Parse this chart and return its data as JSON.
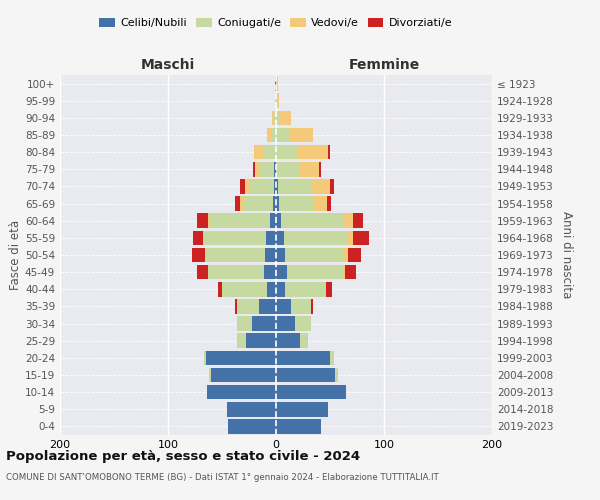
{
  "age_groups": [
    "0-4",
    "5-9",
    "10-14",
    "15-19",
    "20-24",
    "25-29",
    "30-34",
    "35-39",
    "40-44",
    "45-49",
    "50-54",
    "55-59",
    "60-64",
    "65-69",
    "70-74",
    "75-79",
    "80-84",
    "85-89",
    "90-94",
    "95-99",
    "100+"
  ],
  "birth_years": [
    "2019-2023",
    "2014-2018",
    "2009-2013",
    "2004-2008",
    "1999-2003",
    "1994-1998",
    "1989-1993",
    "1984-1988",
    "1979-1983",
    "1974-1978",
    "1969-1973",
    "1964-1968",
    "1959-1963",
    "1954-1958",
    "1949-1953",
    "1944-1948",
    "1939-1943",
    "1934-1938",
    "1929-1933",
    "1924-1928",
    "≤ 1923"
  ],
  "colors": {
    "celibi": "#4472a8",
    "coniugati": "#c5d9a0",
    "vedovi": "#f5c97a",
    "divorziati": "#cc2222"
  },
  "legend_colors": {
    "Celibi/Nubili": "#4472a8",
    "Coniugati/e": "#c5d9a0",
    "Vedovi/e": "#f5c97a",
    "Divorziati/e": "#cc2222"
  },
  "males": {
    "celibi": [
      44,
      45,
      64,
      60,
      65,
      28,
      22,
      16,
      8,
      11,
      10,
      9,
      6,
      3,
      2,
      2,
      0,
      0,
      0,
      0,
      1
    ],
    "coniugati": [
      0,
      0,
      0,
      2,
      2,
      8,
      14,
      20,
      42,
      52,
      55,
      58,
      55,
      28,
      22,
      14,
      12,
      4,
      2,
      0,
      0
    ],
    "vedovi": [
      0,
      0,
      0,
      0,
      0,
      0,
      0,
      0,
      0,
      0,
      1,
      1,
      2,
      2,
      5,
      3,
      8,
      4,
      2,
      1,
      0
    ],
    "divorziati": [
      0,
      0,
      0,
      0,
      0,
      0,
      0,
      2,
      4,
      10,
      12,
      9,
      10,
      5,
      4,
      2,
      0,
      0,
      0,
      0,
      0
    ]
  },
  "females": {
    "nubili": [
      42,
      48,
      65,
      55,
      50,
      22,
      18,
      14,
      8,
      10,
      8,
      7,
      5,
      3,
      2,
      0,
      0,
      0,
      0,
      0,
      0
    ],
    "coniugate": [
      0,
      0,
      0,
      2,
      4,
      8,
      14,
      18,
      38,
      52,
      55,
      60,
      58,
      32,
      30,
      22,
      20,
      12,
      4,
      1,
      0
    ],
    "vedove": [
      0,
      0,
      0,
      0,
      0,
      0,
      0,
      0,
      0,
      2,
      4,
      4,
      8,
      12,
      18,
      18,
      28,
      22,
      10,
      2,
      2
    ],
    "divorziate": [
      0,
      0,
      0,
      0,
      0,
      0,
      0,
      2,
      6,
      10,
      12,
      15,
      10,
      4,
      4,
      2,
      2,
      0,
      0,
      0,
      0
    ]
  },
  "xlim": 200,
  "title": "Popolazione per età, sesso e stato civile - 2024",
  "subtitle": "COMUNE DI SANT'OMOBONO TERME (BG) - Dati ISTAT 1° gennaio 2024 - Elaborazione TUTTITALIA.IT",
  "xlabel_left": "Maschi",
  "xlabel_right": "Femmine",
  "ylabel_left": "Fasce di età",
  "ylabel_right": "Anni di nascita",
  "background_color": "#f5f5f5",
  "plot_bg": "#e8eaf0"
}
